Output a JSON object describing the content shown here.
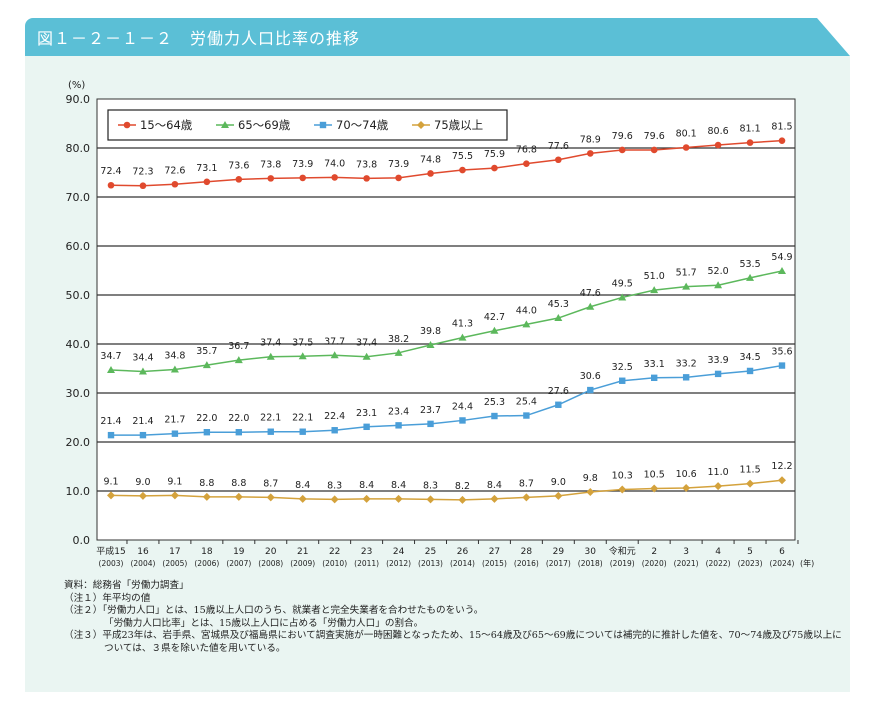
{
  "header": {
    "title": "図１－２－１－２　労働力人口比率の推移"
  },
  "colors": {
    "header": "#5bbfd6",
    "panel": "#eaf5f2"
  },
  "chart_data": {
    "type": "line",
    "title": "労働力人口比率の推移",
    "ylabel": "(%)",
    "xlabel": "(年)",
    "ylim": [
      0,
      90
    ],
    "yticks": [
      "0.0",
      "10.0",
      "20.0",
      "30.0",
      "40.0",
      "50.0",
      "60.0",
      "70.0",
      "80.0",
      "90.0"
    ],
    "grid": true,
    "legend": "top-left",
    "categories": [
      {
        "era": "平成15",
        "year": "(2003)"
      },
      {
        "era": "16",
        "year": "(2004)"
      },
      {
        "era": "17",
        "year": "(2005)"
      },
      {
        "era": "18",
        "year": "(2006)"
      },
      {
        "era": "19",
        "year": "(2007)"
      },
      {
        "era": "20",
        "year": "(2008)"
      },
      {
        "era": "21",
        "year": "(2009)"
      },
      {
        "era": "22",
        "year": "(2010)"
      },
      {
        "era": "23",
        "year": "(2011)"
      },
      {
        "era": "24",
        "year": "(2012)"
      },
      {
        "era": "25",
        "year": "(2013)"
      },
      {
        "era": "26",
        "year": "(2014)"
      },
      {
        "era": "27",
        "year": "(2015)"
      },
      {
        "era": "28",
        "year": "(2016)"
      },
      {
        "era": "29",
        "year": "(2017)"
      },
      {
        "era": "30",
        "year": "(2018)"
      },
      {
        "era": "令和元",
        "year": "(2019)"
      },
      {
        "era": "2",
        "year": "(2020)"
      },
      {
        "era": "3",
        "year": "(2021)"
      },
      {
        "era": "4",
        "year": "(2022)"
      },
      {
        "era": "5",
        "year": "(2023)"
      },
      {
        "era": "6",
        "year": "(2024)"
      }
    ],
    "series": [
      {
        "name": "15～64歳",
        "color": "#e04a2e",
        "marker": "circle",
        "values": [
          72.4,
          72.3,
          72.6,
          73.1,
          73.6,
          73.8,
          73.9,
          74.0,
          73.8,
          73.9,
          74.8,
          75.5,
          75.9,
          76.8,
          77.6,
          78.9,
          79.6,
          79.6,
          80.1,
          80.6,
          81.1,
          81.5
        ]
      },
      {
        "name": "65～69歳",
        "color": "#5cb85c",
        "marker": "triangle",
        "values": [
          34.7,
          34.4,
          34.8,
          35.7,
          36.7,
          37.4,
          37.5,
          37.7,
          37.4,
          38.2,
          39.8,
          41.3,
          42.7,
          44.0,
          45.3,
          47.6,
          49.5,
          51.0,
          51.7,
          52.0,
          53.5,
          54.9
        ]
      },
      {
        "name": "70～74歳",
        "color": "#4a9ed8",
        "marker": "square",
        "values": [
          21.4,
          21.4,
          21.7,
          22.0,
          22.0,
          22.1,
          22.1,
          22.4,
          23.1,
          23.4,
          23.7,
          24.4,
          25.3,
          25.4,
          27.6,
          30.6,
          32.5,
          33.1,
          33.2,
          33.9,
          34.5,
          35.6
        ]
      },
      {
        "name": "75歳以上",
        "color": "#d4a23c",
        "marker": "diamond",
        "values": [
          9.1,
          9.0,
          9.1,
          8.8,
          8.8,
          8.7,
          8.4,
          8.3,
          8.4,
          8.4,
          8.3,
          8.2,
          8.4,
          8.7,
          9.0,
          9.8,
          10.3,
          10.5,
          10.6,
          11.0,
          11.5,
          12.2
        ]
      }
    ]
  },
  "notes": [
    "資料：総務省「労働力調査」",
    "（注１）年平均の値",
    "（注２）「労働力人口」とは、15歳以上人口のうち、就業者と完全失業者を合わせたものをいう。",
    "「労働力人口比率」とは、15歳以上人口に占める「労働力人口」の割合。",
    "（注３）平成23年は、岩手県、宮城県及び福島県において調査実施が一時困難となったため、15～64歳及び65～69歳については補完的に推計した値を、70～74歳及び75歳以上については、３県を除いた値を用いている。"
  ]
}
